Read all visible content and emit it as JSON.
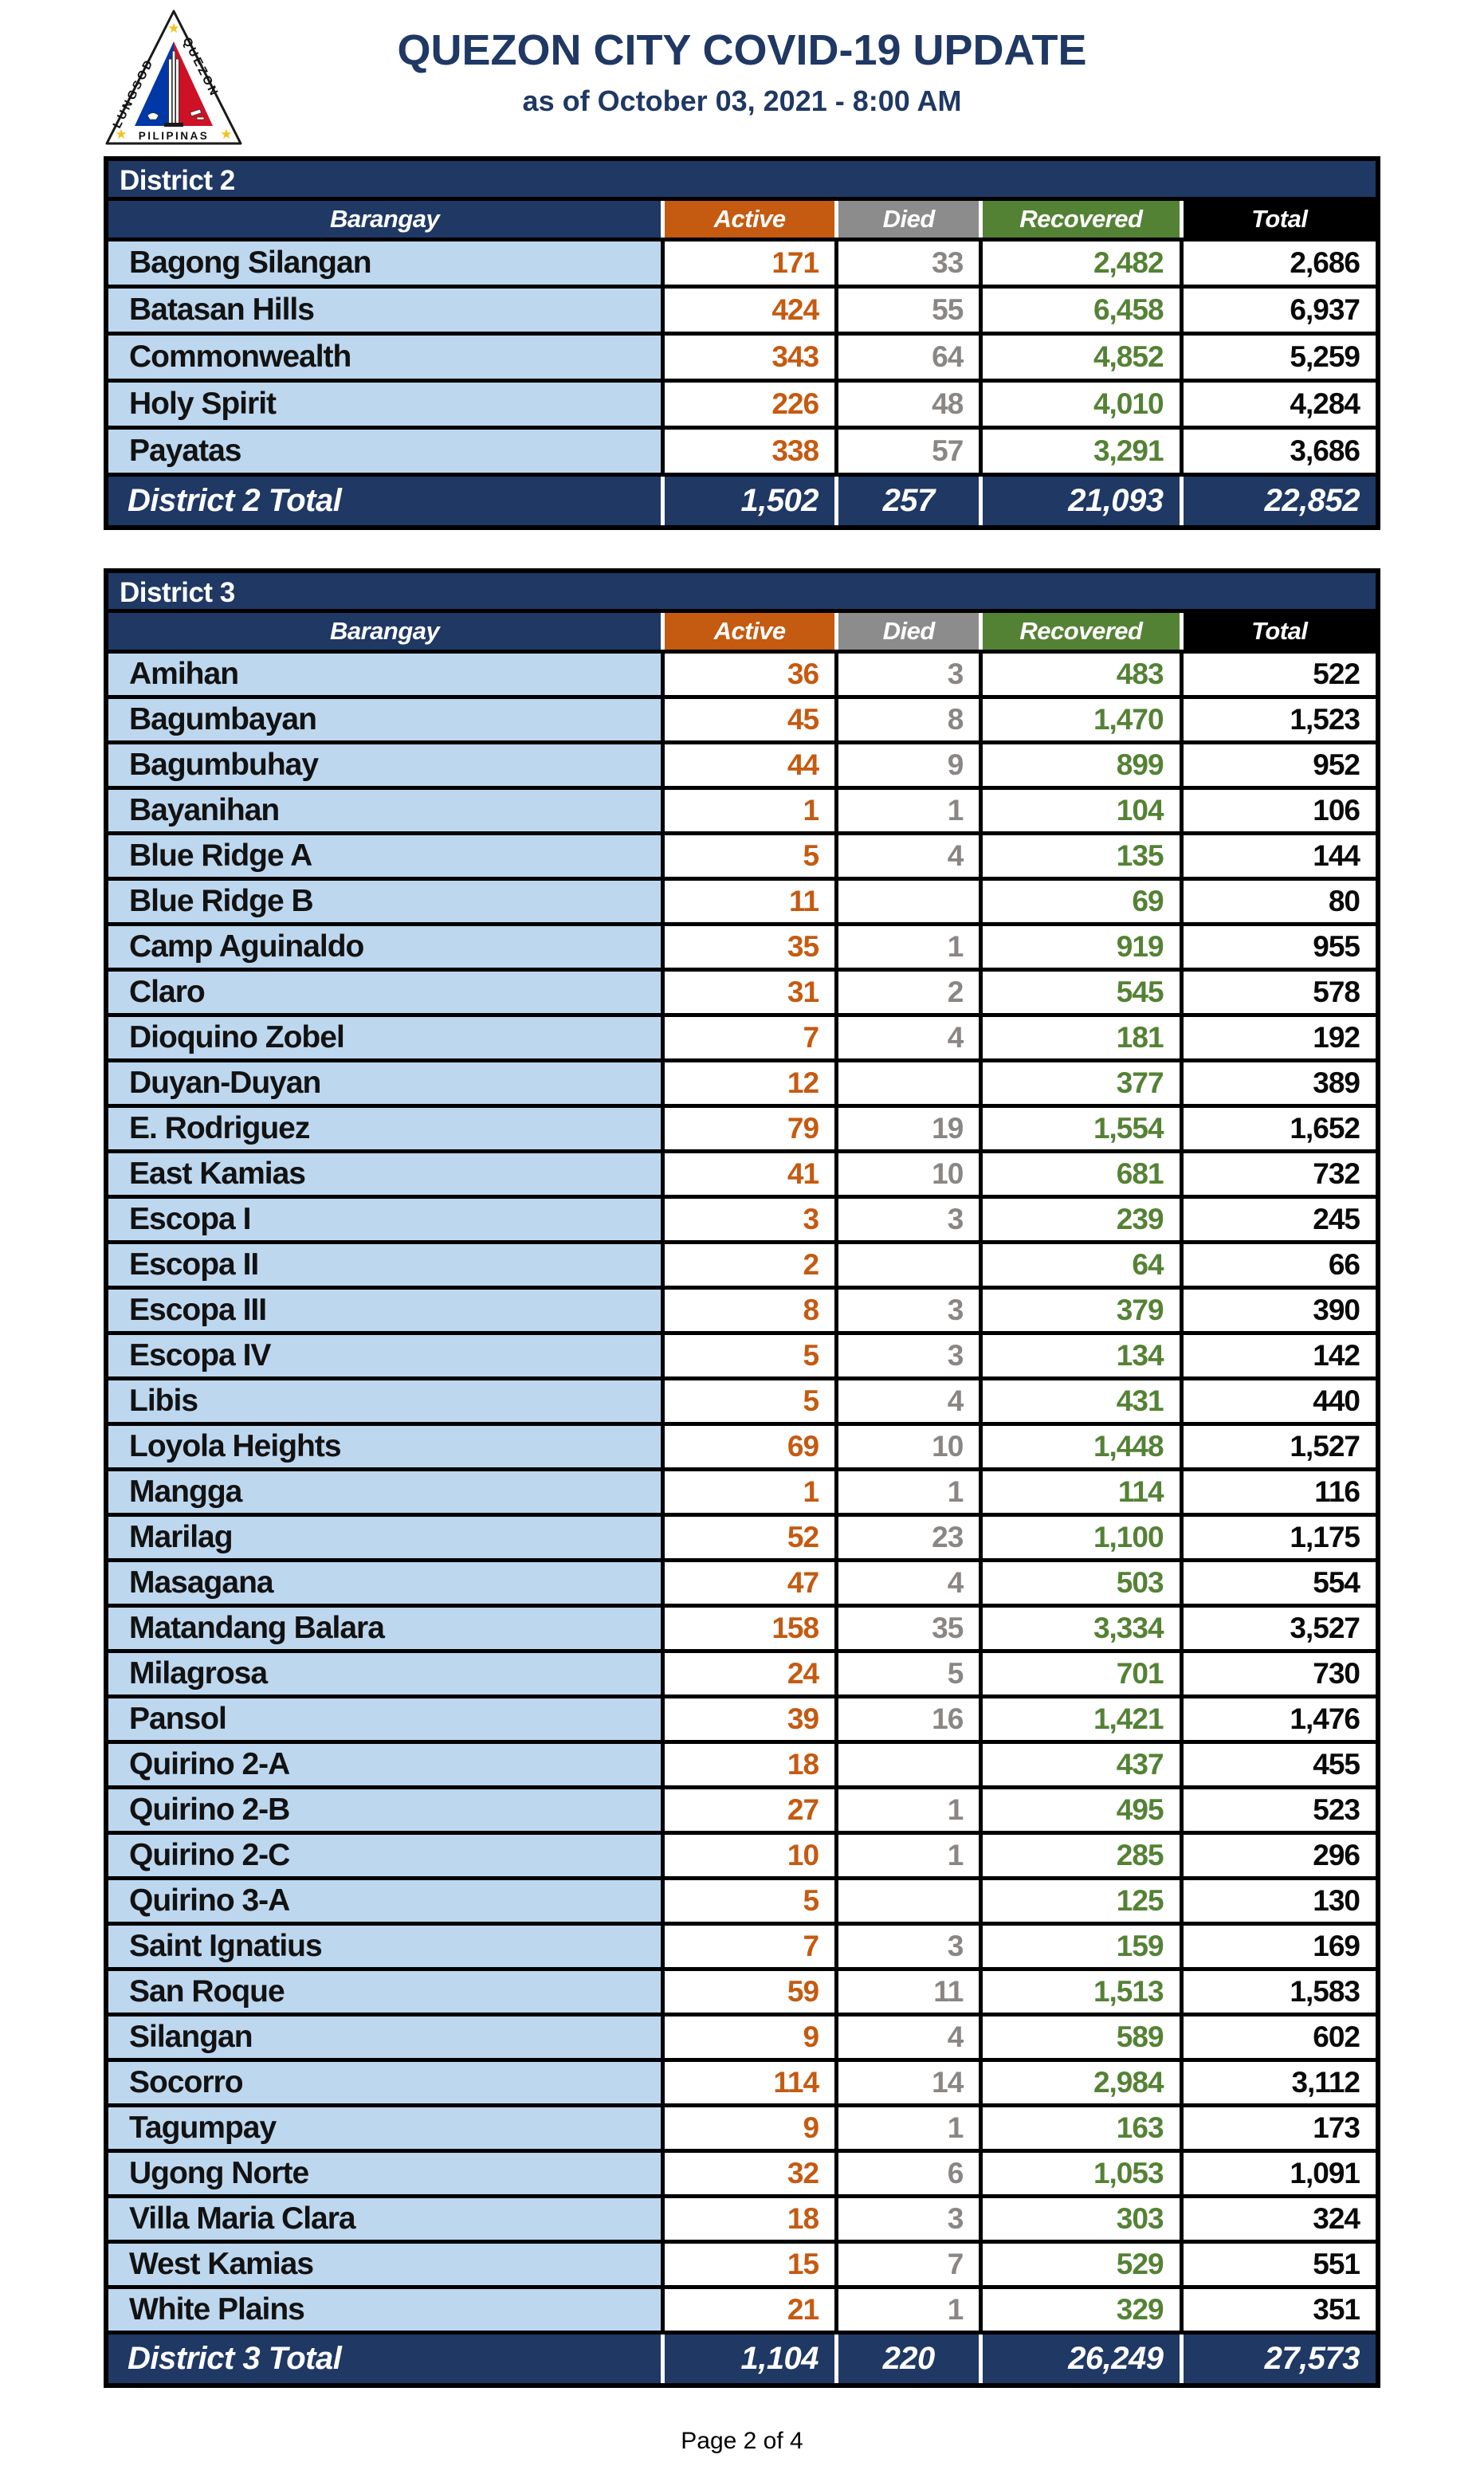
{
  "page": {
    "title": "QUEZON CITY COVID-19 UPDATE",
    "subtitle": "as of October 03, 2021 - 8:00 AM",
    "footer": "Page 2 of 4"
  },
  "logo": {
    "name": "quezon-city-seal",
    "text_left": "LUNGSOD",
    "text_right": "QUEZON",
    "text_bottom": "PILIPINAS",
    "star_icon": "★"
  },
  "colors": {
    "header_navy": "#1F3864",
    "row_light_blue": "#BDD7EE",
    "active_orange": "#C55A11",
    "died_gray": "#8C8C8C",
    "recovered_green": "#548235",
    "total_black": "#000000",
    "seal_blue": "#0038A8",
    "seal_red": "#CE1126",
    "seal_star_gold": "#F2C31B"
  },
  "columns": [
    "Barangay",
    "Active",
    "Died",
    "Recovered",
    "Total"
  ],
  "tables": [
    {
      "district": "District 2",
      "rows": [
        {
          "name": "Bagong Silangan",
          "active": "171",
          "died": "33",
          "recovered": "2,482",
          "total": "2,686"
        },
        {
          "name": "Batasan Hills",
          "active": "424",
          "died": "55",
          "recovered": "6,458",
          "total": "6,937"
        },
        {
          "name": "Commonwealth",
          "active": "343",
          "died": "64",
          "recovered": "4,852",
          "total": "5,259"
        },
        {
          "name": "Holy Spirit",
          "active": "226",
          "died": "48",
          "recovered": "4,010",
          "total": "4,284"
        },
        {
          "name": "Payatas",
          "active": "338",
          "died": "57",
          "recovered": "3,291",
          "total": "3,686"
        }
      ],
      "total": {
        "label": "District 2 Total",
        "active": "1,502",
        "died": "257",
        "recovered": "21,093",
        "total": "22,852"
      }
    },
    {
      "district": "District 3",
      "rows": [
        {
          "name": "Amihan",
          "active": "36",
          "died": "3",
          "recovered": "483",
          "total": "522"
        },
        {
          "name": "Bagumbayan",
          "active": "45",
          "died": "8",
          "recovered": "1,470",
          "total": "1,523"
        },
        {
          "name": "Bagumbuhay",
          "active": "44",
          "died": "9",
          "recovered": "899",
          "total": "952"
        },
        {
          "name": "Bayanihan",
          "active": "1",
          "died": "1",
          "recovered": "104",
          "total": "106"
        },
        {
          "name": "Blue Ridge A",
          "active": "5",
          "died": "4",
          "recovered": "135",
          "total": "144"
        },
        {
          "name": "Blue Ridge B",
          "active": "11",
          "died": "",
          "recovered": "69",
          "total": "80"
        },
        {
          "name": "Camp Aguinaldo",
          "active": "35",
          "died": "1",
          "recovered": "919",
          "total": "955"
        },
        {
          "name": "Claro",
          "active": "31",
          "died": "2",
          "recovered": "545",
          "total": "578"
        },
        {
          "name": "Dioquino Zobel",
          "active": "7",
          "died": "4",
          "recovered": "181",
          "total": "192"
        },
        {
          "name": "Duyan-Duyan",
          "active": "12",
          "died": "",
          "recovered": "377",
          "total": "389"
        },
        {
          "name": "E. Rodriguez",
          "active": "79",
          "died": "19",
          "recovered": "1,554",
          "total": "1,652"
        },
        {
          "name": "East Kamias",
          "active": "41",
          "died": "10",
          "recovered": "681",
          "total": "732"
        },
        {
          "name": "Escopa I",
          "active": "3",
          "died": "3",
          "recovered": "239",
          "total": "245"
        },
        {
          "name": "Escopa II",
          "active": "2",
          "died": "",
          "recovered": "64",
          "total": "66"
        },
        {
          "name": "Escopa III",
          "active": "8",
          "died": "3",
          "recovered": "379",
          "total": "390"
        },
        {
          "name": "Escopa IV",
          "active": "5",
          "died": "3",
          "recovered": "134",
          "total": "142"
        },
        {
          "name": "Libis",
          "active": "5",
          "died": "4",
          "recovered": "431",
          "total": "440"
        },
        {
          "name": "Loyola Heights",
          "active": "69",
          "died": "10",
          "recovered": "1,448",
          "total": "1,527"
        },
        {
          "name": "Mangga",
          "active": "1",
          "died": "1",
          "recovered": "114",
          "total": "116"
        },
        {
          "name": "Marilag",
          "active": "52",
          "died": "23",
          "recovered": "1,100",
          "total": "1,175"
        },
        {
          "name": "Masagana",
          "active": "47",
          "died": "4",
          "recovered": "503",
          "total": "554"
        },
        {
          "name": "Matandang Balara",
          "active": "158",
          "died": "35",
          "recovered": "3,334",
          "total": "3,527"
        },
        {
          "name": "Milagrosa",
          "active": "24",
          "died": "5",
          "recovered": "701",
          "total": "730"
        },
        {
          "name": "Pansol",
          "active": "39",
          "died": "16",
          "recovered": "1,421",
          "total": "1,476"
        },
        {
          "name": "Quirino 2-A",
          "active": "18",
          "died": "",
          "recovered": "437",
          "total": "455"
        },
        {
          "name": "Quirino 2-B",
          "active": "27",
          "died": "1",
          "recovered": "495",
          "total": "523"
        },
        {
          "name": "Quirino 2-C",
          "active": "10",
          "died": "1",
          "recovered": "285",
          "total": "296"
        },
        {
          "name": "Quirino 3-A",
          "active": "5",
          "died": "",
          "recovered": "125",
          "total": "130"
        },
        {
          "name": "Saint Ignatius",
          "active": "7",
          "died": "3",
          "recovered": "159",
          "total": "169"
        },
        {
          "name": "San Roque",
          "active": "59",
          "died": "11",
          "recovered": "1,513",
          "total": "1,583"
        },
        {
          "name": "Silangan",
          "active": "9",
          "died": "4",
          "recovered": "589",
          "total": "602"
        },
        {
          "name": "Socorro",
          "active": "114",
          "died": "14",
          "recovered": "2,984",
          "total": "3,112"
        },
        {
          "name": "Tagumpay",
          "active": "9",
          "died": "1",
          "recovered": "163",
          "total": "173"
        },
        {
          "name": "Ugong Norte",
          "active": "32",
          "died": "6",
          "recovered": "1,053",
          "total": "1,091"
        },
        {
          "name": "Villa Maria Clara",
          "active": "18",
          "died": "3",
          "recovered": "303",
          "total": "324"
        },
        {
          "name": "West Kamias",
          "active": "15",
          "died": "7",
          "recovered": "529",
          "total": "551"
        },
        {
          "name": "White Plains",
          "active": "21",
          "died": "1",
          "recovered": "329",
          "total": "351"
        }
      ],
      "total": {
        "label": "District 3 Total",
        "active": "1,104",
        "died": "220",
        "recovered": "26,249",
        "total": "27,573"
      }
    }
  ]
}
